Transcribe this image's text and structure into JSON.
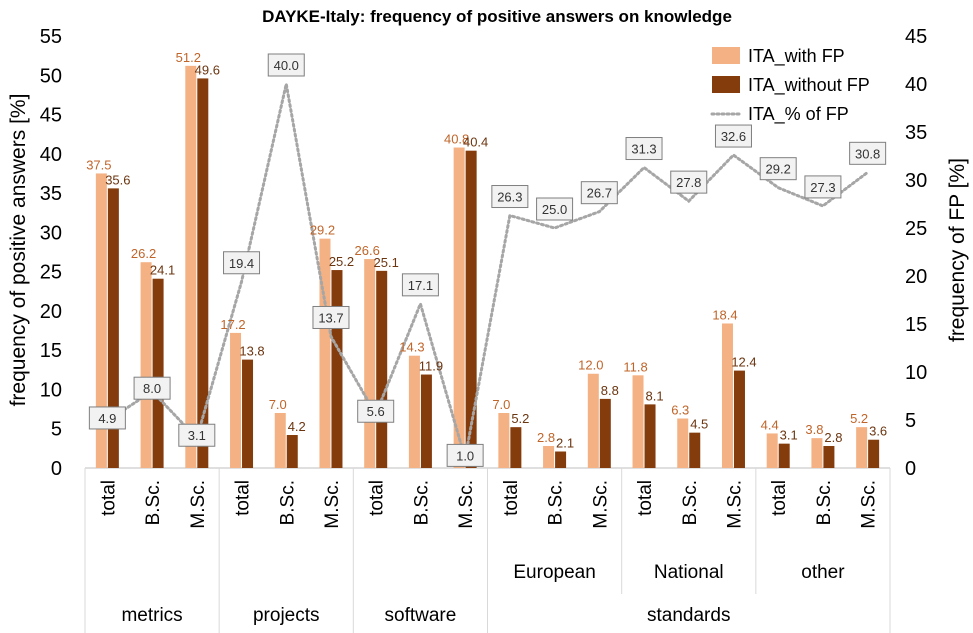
{
  "colors": {
    "with_fp": "#f4b183",
    "without_fp": "#843c0c",
    "pct_fp": "#a6a6a6",
    "label_with": "#c0652a",
    "label_without": "#6b3510"
  },
  "chart_data": {
    "type": "bar",
    "title": "DAYKE-Italy: frequency of positive answers on knowledge",
    "ylabel": "frequency  of positive answers  [%]",
    "y2label": "frequency of FP  [%]",
    "ylim": [
      0,
      55
    ],
    "yticks": [
      0,
      5,
      10,
      15,
      20,
      25,
      30,
      35,
      40,
      45,
      50,
      55
    ],
    "y2lim": [
      0,
      45
    ],
    "y2ticks": [
      0,
      5,
      10,
      15,
      20,
      25,
      30,
      35,
      40,
      45
    ],
    "legend_position": "top-right",
    "grid": false,
    "categories": [
      "total",
      "B.Sc.",
      "M.Sc.",
      "total",
      "B.Sc.",
      "M.Sc.",
      "total",
      "B.Sc.",
      "M.Sc.",
      "total",
      "B.Sc.",
      "M.Sc.",
      "total",
      "B.Sc.",
      "M.Sc.",
      "total",
      "B.Sc.",
      "M.Sc."
    ],
    "subgroups": [
      {
        "label": "European",
        "span": [
          9,
          11
        ]
      },
      {
        "label": "National",
        "span": [
          12,
          14
        ]
      },
      {
        "label": "other",
        "span": [
          15,
          17
        ]
      }
    ],
    "groups": [
      {
        "label": "metrics",
        "span": [
          0,
          2
        ]
      },
      {
        "label": "projects",
        "span": [
          3,
          5
        ]
      },
      {
        "label": "software",
        "span": [
          6,
          8
        ]
      },
      {
        "label": "standards",
        "span": [
          9,
          17
        ]
      }
    ],
    "series": [
      {
        "name": "ITA_with FP",
        "kind": "bar",
        "axis": "left",
        "values": [
          37.5,
          26.2,
          51.2,
          17.2,
          7.0,
          29.2,
          26.6,
          14.3,
          40.8,
          7.0,
          2.8,
          12.0,
          11.8,
          6.3,
          18.4,
          4.4,
          3.8,
          5.2
        ]
      },
      {
        "name": "ITA_without FP",
        "kind": "bar",
        "axis": "left",
        "values": [
          35.6,
          24.1,
          49.6,
          13.8,
          4.2,
          25.2,
          25.1,
          11.9,
          40.4,
          5.2,
          2.1,
          8.8,
          8.1,
          4.5,
          12.4,
          3.1,
          2.8,
          3.6
        ]
      },
      {
        "name": "ITA_% of FP",
        "kind": "line",
        "style": "dotted",
        "axis": "right",
        "values": [
          4.9,
          8.0,
          3.1,
          19.4,
          40.0,
          13.7,
          5.6,
          17.1,
          1.0,
          26.3,
          25.0,
          26.7,
          31.3,
          27.8,
          32.6,
          29.2,
          27.3,
          30.8
        ]
      }
    ]
  }
}
